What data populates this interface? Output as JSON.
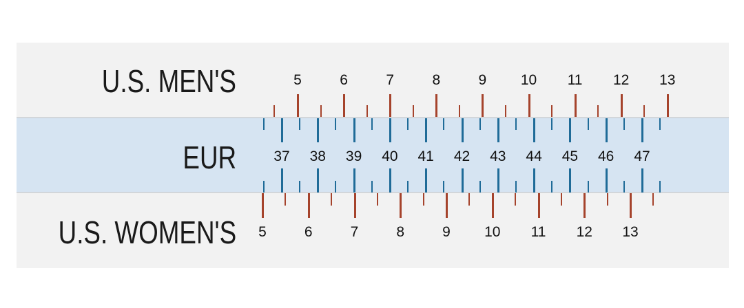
{
  "rows": {
    "us_mens": {
      "label": "U.S. MEN'S",
      "sizes": [
        "5",
        "6",
        "7",
        "8",
        "9",
        "10",
        "11",
        "12",
        "13"
      ]
    },
    "eur": {
      "label": "EUR",
      "sizes": [
        "37",
        "38",
        "39",
        "40",
        "41",
        "42",
        "43",
        "44",
        "45",
        "46",
        "47"
      ]
    },
    "us_womens": {
      "label": "U.S. WOMEN'S",
      "sizes": [
        "5",
        "6",
        "7",
        "8",
        "9",
        "10",
        "11",
        "12",
        "13"
      ]
    }
  },
  "colors": {
    "us_ticks": "#a5432c",
    "eur_ticks": "#1f6b98",
    "eur_band": "#d6e4f2",
    "background": "#f2f2f2"
  }
}
